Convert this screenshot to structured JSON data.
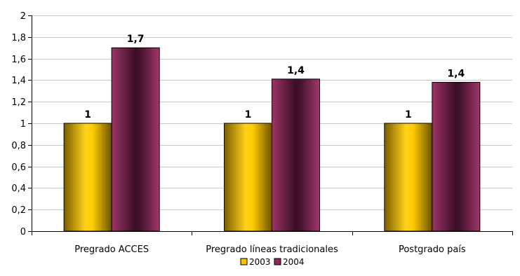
{
  "chart_data": {
    "type": "bar",
    "categories": [
      "Pregrado ACCES",
      "Pregrado líneas tradicionales",
      "Postgrado país"
    ],
    "series": [
      {
        "name": "2003",
        "values": [
          1,
          1,
          1
        ],
        "labels": [
          "1",
          "1",
          "1"
        ],
        "color": "#F5C400"
      },
      {
        "name": "2004",
        "values": [
          1.7,
          1.41,
          1.38
        ],
        "labels": [
          "1,7",
          "1,4",
          "1,4"
        ],
        "color": "#8E2A5A"
      }
    ],
    "yticks": [
      "0",
      "0,2",
      "0,4",
      "0,6",
      "0,8",
      "1",
      "1,2",
      "1,4",
      "1,6",
      "1,8",
      "2"
    ],
    "ylim": [
      0,
      2
    ],
    "grid": true,
    "legend": "bottom-center"
  }
}
